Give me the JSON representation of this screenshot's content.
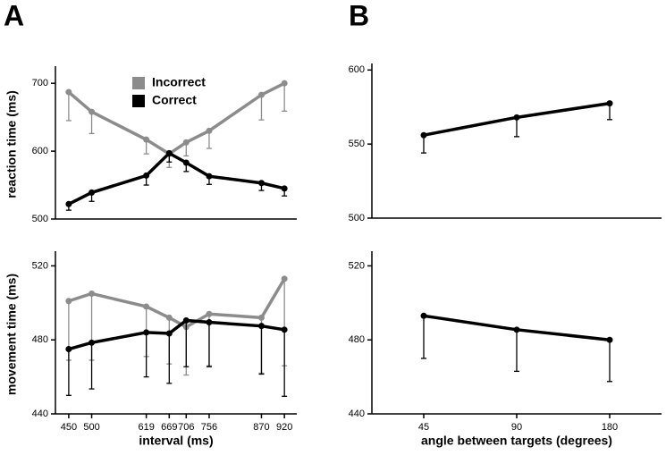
{
  "chart_data": [
    {
      "type": "line",
      "panel": "A",
      "y_label": "reaction time (ms)",
      "legend": "upper center",
      "x": [
        450,
        500,
        619,
        669,
        706,
        756,
        870,
        920
      ],
      "xlim": [
        421,
        947
      ],
      "ylim": [
        500,
        720
      ],
      "yticks": [
        500,
        600,
        700
      ],
      "series": [
        {
          "name": "Incorrect",
          "color": "#8c8c8c",
          "values": [
            687,
            658,
            617,
            596,
            613,
            630,
            683,
            700
          ],
          "errors": [
            42,
            32,
            21,
            20,
            20,
            26,
            37,
            41
          ]
        },
        {
          "name": "Correct",
          "color": "#000000",
          "values": [
            522,
            539,
            564,
            597,
            583,
            563,
            553,
            545
          ],
          "errors": [
            9,
            13,
            14,
            13,
            13,
            12,
            11,
            11
          ]
        }
      ]
    },
    {
      "type": "line",
      "y_label": "movement time (ms)",
      "x_label": "interval (ms)",
      "x": [
        450,
        500,
        619,
        669,
        706,
        756,
        870,
        920
      ],
      "xlim": [
        421,
        947
      ],
      "xticks": [
        450,
        500,
        619,
        669,
        706,
        756,
        870,
        920
      ],
      "ylim": [
        440,
        526
      ],
      "yticks": [
        440,
        480,
        520
      ],
      "series": [
        {
          "color": "#8c8c8c",
          "values": [
            501,
            505,
            498,
            492,
            487,
            494,
            492,
            513
          ],
          "errors": [
            32,
            36,
            27,
            25,
            26,
            28,
            30,
            47
          ]
        },
        {
          "color": "#000000",
          "values": [
            475,
            478.5,
            484,
            483.5,
            490.5,
            489.5,
            487.5,
            485.5
          ],
          "errors": [
            25,
            25,
            24,
            27,
            25,
            24,
            26,
            36
          ]
        }
      ]
    },
    {
      "type": "line",
      "panel": "B",
      "ylim": [
        500,
        602
      ],
      "yticks": [
        500,
        550,
        600
      ],
      "series": [
        {
          "color": "#000000",
          "values": [
            556,
            568,
            577.5
          ],
          "errors": [
            12,
            13,
            11
          ]
        }
      ]
    },
    {
      "type": "line",
      "x_label": "angle between targets (degrees)",
      "categories": [
        "45",
        "90",
        "180"
      ],
      "ylim": [
        440,
        526
      ],
      "yticks": [
        440,
        480,
        520
      ],
      "series": [
        {
          "color": "#000000",
          "values": [
            493,
            485.5,
            480
          ],
          "errors": [
            23,
            22.5,
            22.5
          ]
        }
      ]
    }
  ]
}
